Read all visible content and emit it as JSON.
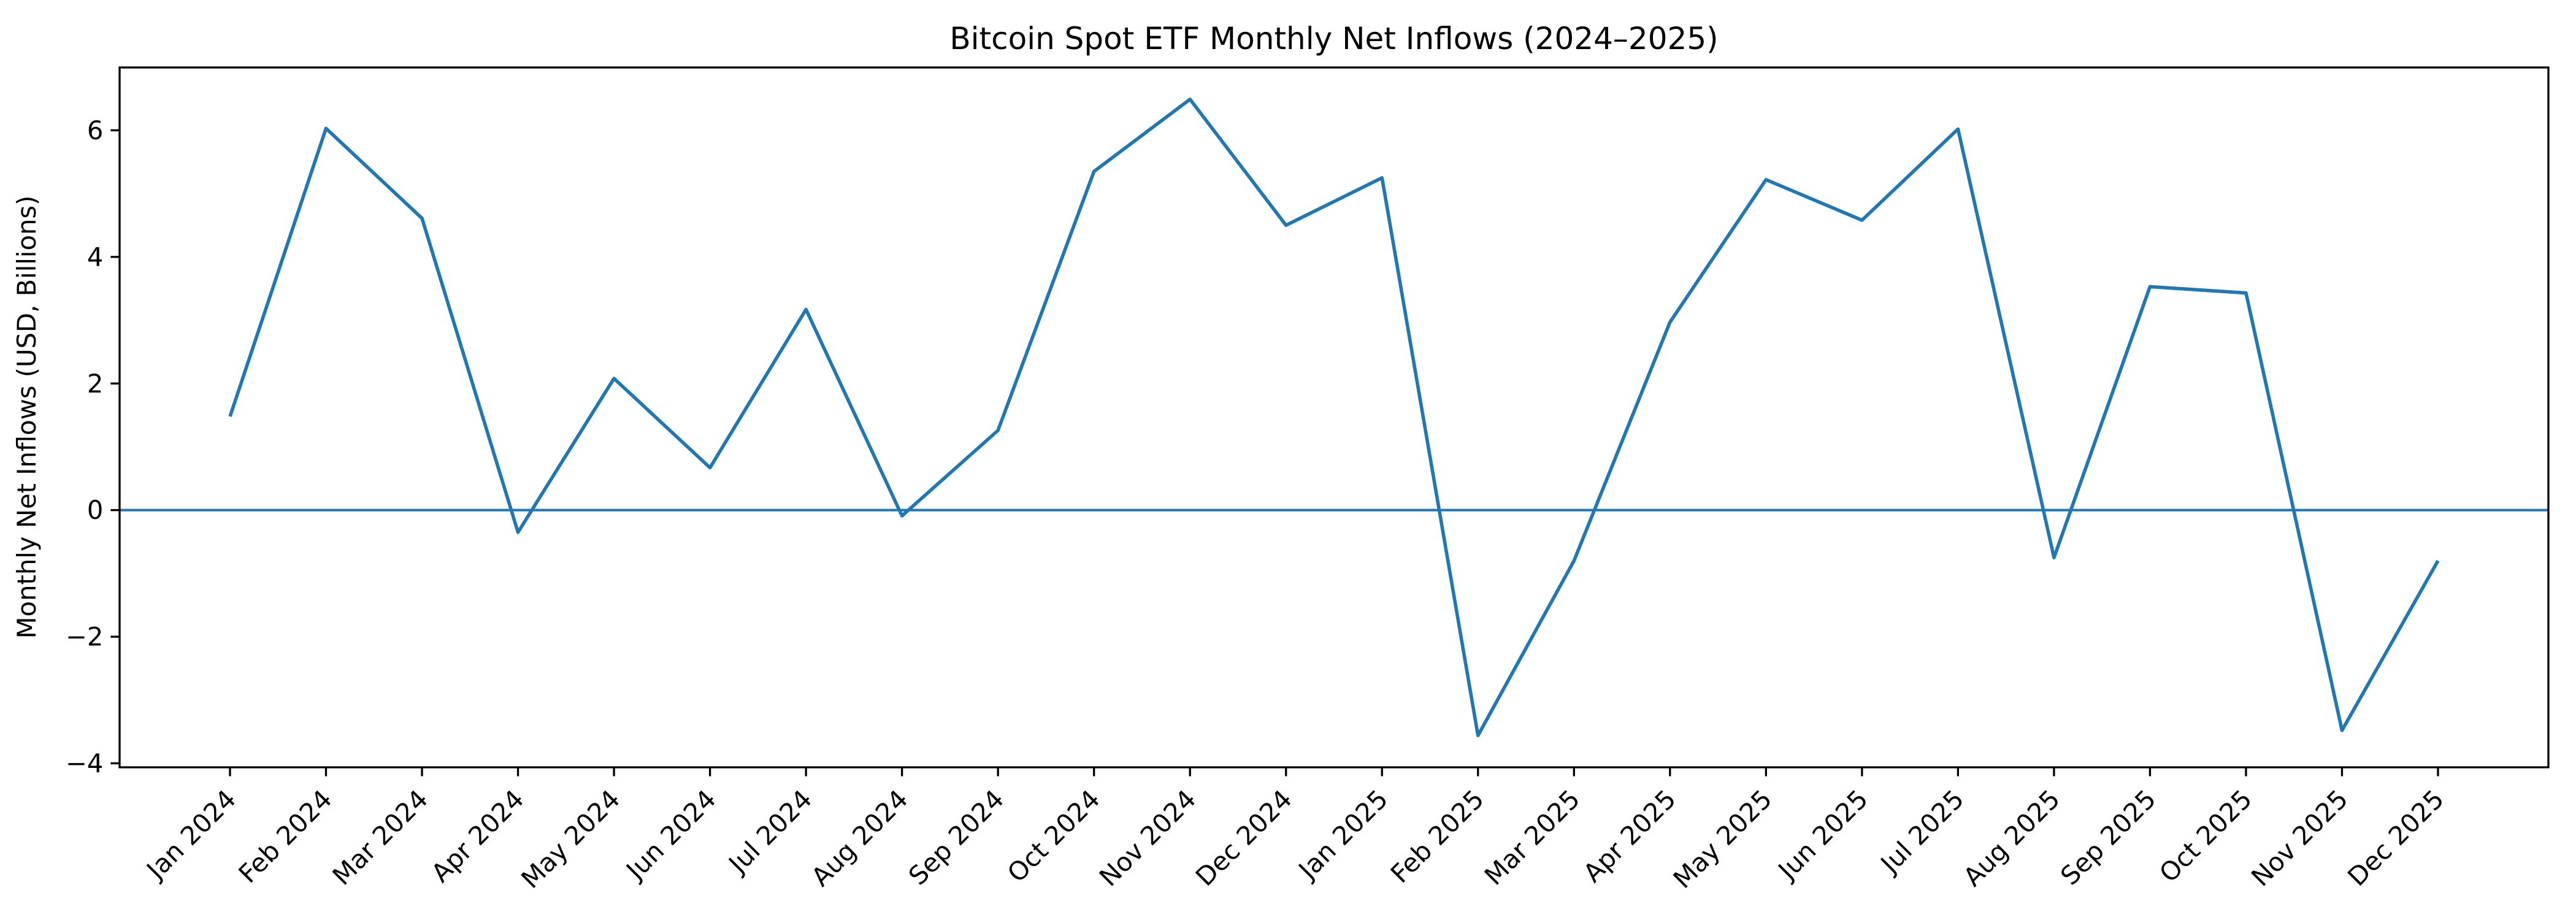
{
  "figure": {
    "background": "#ffffff"
  },
  "chart_data": {
    "type": "line",
    "title": "Bitcoin Spot ETF Monthly Net Inflows (2024–2025)",
    "ylabel": "Monthly Net Inflows (USD, Billions)",
    "xlabel": "",
    "categories": [
      "Jan 2024",
      "Feb 2024",
      "Mar 2024",
      "Apr 2024",
      "May 2024",
      "Jun 2024",
      "Jul 2024",
      "Aug 2024",
      "Sep 2024",
      "Oct 2024",
      "Nov 2024",
      "Dec 2024",
      "Jan 2025",
      "Feb 2025",
      "Mar 2025",
      "Apr 2025",
      "May 2025",
      "Jun 2025",
      "Jul 2025",
      "Aug 2025",
      "Sep 2025",
      "Oct 2025",
      "Nov 2025",
      "Dec 2025"
    ],
    "values": [
      1.48,
      6.03,
      4.61,
      -0.35,
      2.08,
      0.67,
      3.17,
      -0.09,
      1.26,
      5.35,
      6.49,
      4.5,
      5.25,
      -3.56,
      -0.8,
      2.97,
      5.22,
      4.58,
      6.02,
      -0.75,
      3.53,
      3.43,
      -3.48,
      -0.8
    ],
    "ylim": [
      -4.0625,
      6.9925
    ],
    "yticks": [
      -4,
      -2,
      0,
      2,
      4,
      6
    ],
    "ytick_labels": [
      "−4",
      "−2",
      "0",
      "2",
      "4",
      "6"
    ],
    "x_tick_rotation_deg": 45,
    "grid": false,
    "legend": "none",
    "line_color": "#1f77b4",
    "zero_line": {
      "show": true,
      "y": 0,
      "color": "#1f77b4"
    },
    "axis_color": "#000000"
  }
}
